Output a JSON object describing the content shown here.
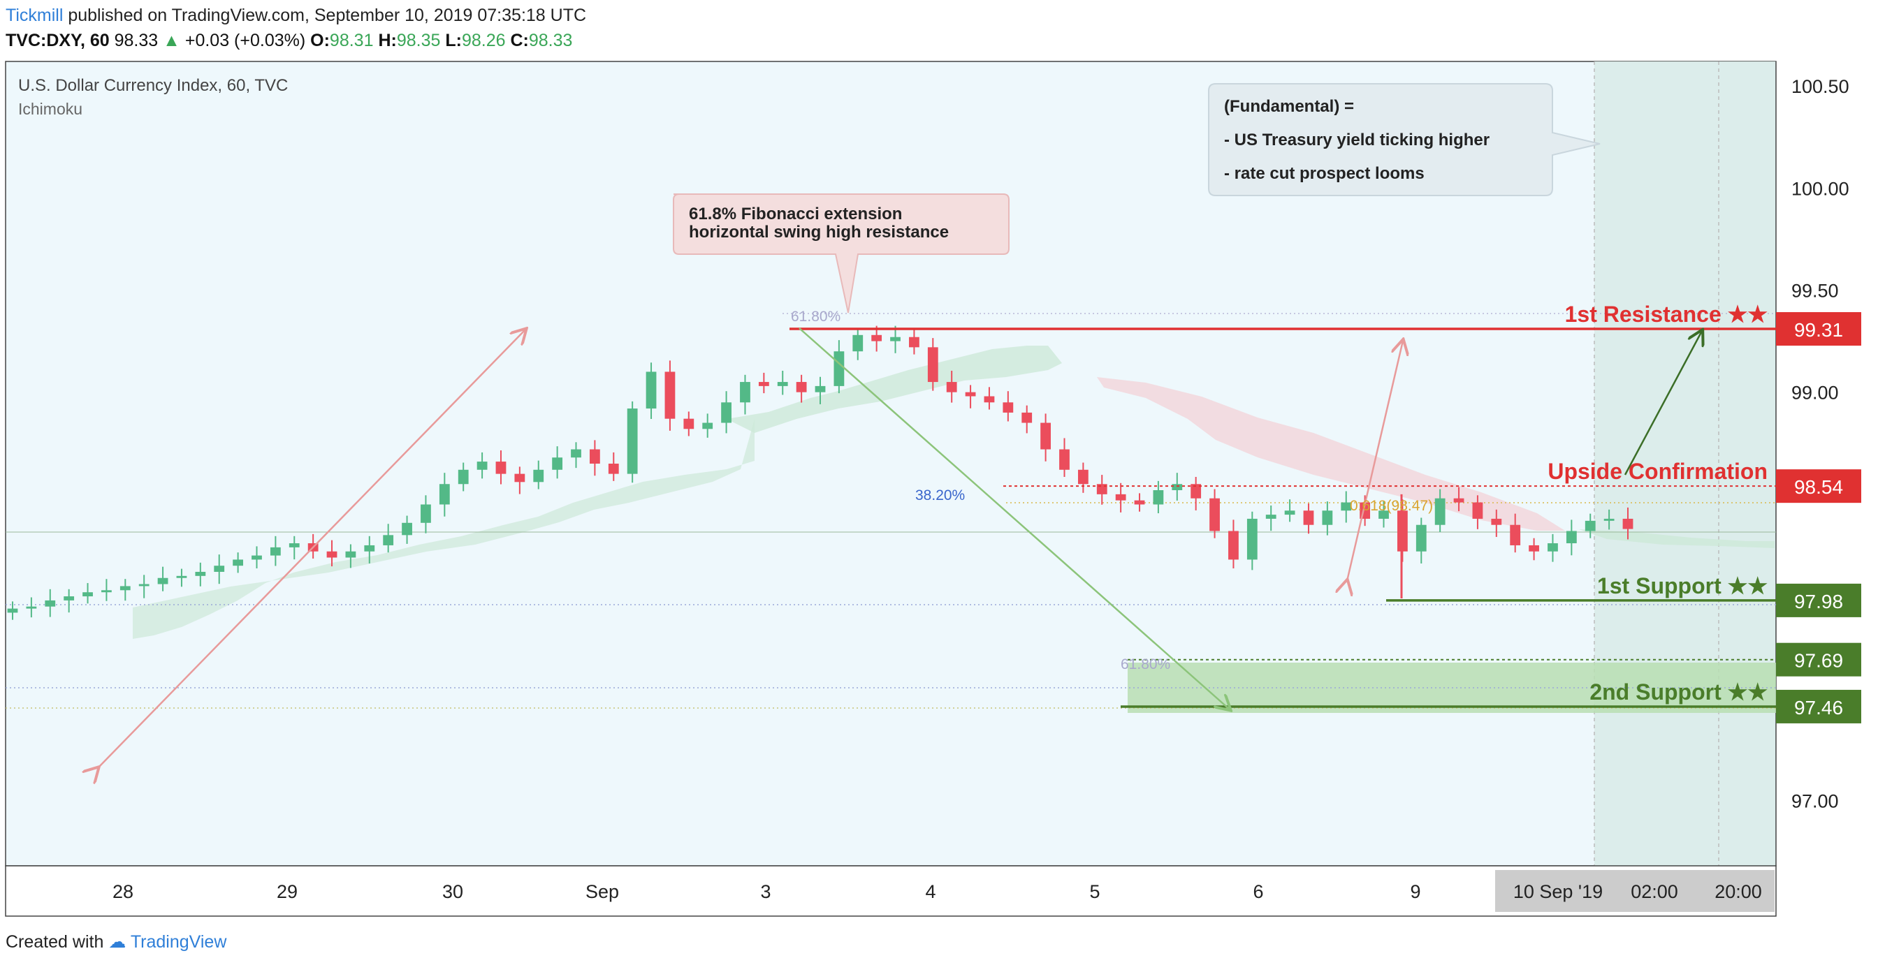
{
  "header": {
    "publisher": "Tickmill",
    "published_text": "published on TradingView.com, September 10, 2019 07:35:18 UTC",
    "symbol": "TVC:DXY, 60",
    "last": "98.33",
    "change": "+0.03 (+0.03%)",
    "o_label": "O:",
    "o_value": "98.31",
    "h_label": "H:",
    "h_value": "98.35",
    "l_label": "L:",
    "l_value": "98.26",
    "c_label": "C:",
    "c_value": "98.33"
  },
  "footer": {
    "created_with": "Created with",
    "brand": "TradingView"
  },
  "chart_data": {
    "type": "candlestick",
    "title": "U.S. Dollar Currency Index, 60, TVC",
    "indicator": "Ichimoku",
    "ylim": [
      96.68,
      100.62
    ],
    "y_ticks": [
      "100.50",
      "100.00",
      "99.50",
      "99.00",
      "97.00"
    ],
    "x_ticks": [
      "28",
      "29",
      "30",
      "Sep",
      "3",
      "4",
      "5",
      "6",
      "9",
      "02:00",
      "20:00"
    ],
    "x_current": "10 Sep '19",
    "close_series": [
      97.94,
      97.95,
      97.98,
      98.0,
      98.02,
      98.03,
      98.05,
      98.06,
      98.09,
      98.1,
      98.12,
      98.15,
      98.18,
      98.2,
      98.24,
      98.26,
      98.22,
      98.19,
      98.22,
      98.25,
      98.3,
      98.36,
      98.45,
      98.55,
      98.62,
      98.66,
      98.6,
      98.56,
      98.62,
      98.68,
      98.72,
      98.65,
      98.6,
      98.92,
      99.1,
      98.87,
      98.82,
      98.85,
      98.95,
      99.05,
      99.03,
      99.05,
      99.0,
      99.03,
      99.2,
      99.28,
      99.25,
      99.27,
      99.22,
      99.05,
      99.0,
      98.98,
      98.95,
      98.9,
      98.85,
      98.72,
      98.62,
      98.55,
      98.5,
      98.47,
      98.45,
      98.52,
      98.55,
      98.48,
      98.32,
      98.18,
      98.38,
      98.4,
      98.42,
      98.35,
      98.42,
      98.46,
      98.38,
      98.42,
      98.22,
      98.35,
      98.48,
      98.46,
      98.38,
      98.35,
      98.25,
      98.22,
      98.26,
      98.32,
      98.37,
      98.38,
      98.33
    ],
    "tenkan_line_close": 98.33,
    "annotations": {
      "fib_extension_label": "61.8% Fibonacci extension",
      "fib_extension_label2": "horizontal swing high resistance",
      "fundamental_title": "(Fundamental) =",
      "fundamental_1": "- US Treasury yield ticking higher",
      "fundamental_2": "- rate cut prospect looms",
      "fib_6180_top": "61.80%",
      "fib_3820": "38.20%",
      "fib_0618": "0.618(98.47)",
      "fib_6180_bottom": "61.80%"
    },
    "levels": [
      {
        "name": "1st Resistance ★★",
        "value": 99.31,
        "label": "99.31",
        "color": "#e03131"
      },
      {
        "name": "Upside Confirmation",
        "value": 98.54,
        "label": "98.54",
        "color": "#e03131"
      },
      {
        "name": "1st Support ★★",
        "value": 97.98,
        "label": "97.98",
        "color": "#4a7d2a"
      },
      {
        "name": "",
        "value": 97.69,
        "label": "97.69",
        "color": "#4a7d2a"
      },
      {
        "name": "2nd Support ★★",
        "value": 97.46,
        "label": "97.46",
        "color": "#4a7d2a"
      }
    ]
  },
  "colors": {
    "up": "#53b987",
    "down": "#eb4d5c",
    "resistance": "#e03131",
    "support": "#4a7d2a",
    "plot_bg": "#eef8fc"
  }
}
